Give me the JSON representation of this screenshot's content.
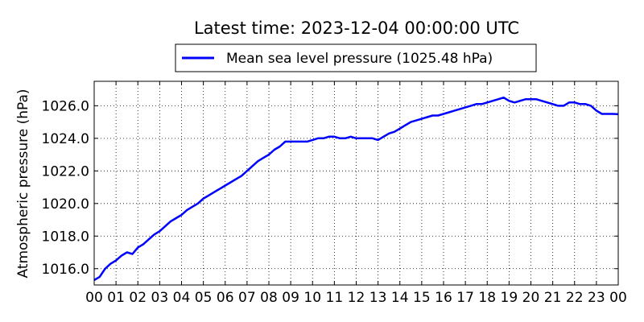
{
  "chart_data": {
    "type": "line",
    "title": "Latest time: 2023-12-04 00:00:00 UTC",
    "xlabel": "",
    "ylabel": "Atmospheric pressure (hPa)",
    "legend_placement": "top-center, above plot",
    "grid": true,
    "xlim": [
      0,
      24
    ],
    "ylim": [
      1015.0,
      1027.5
    ],
    "x_tick_labels": [
      "00",
      "01",
      "02",
      "03",
      "04",
      "05",
      "06",
      "07",
      "08",
      "09",
      "10",
      "11",
      "12",
      "13",
      "14",
      "15",
      "16",
      "17",
      "18",
      "19",
      "20",
      "21",
      "22",
      "23",
      "00"
    ],
    "y_ticks": [
      1016.0,
      1018.0,
      1020.0,
      1022.0,
      1024.0,
      1026.0
    ],
    "y_tick_labels": [
      "1016.0",
      "1018.0",
      "1020.0",
      "1022.0",
      "1024.0",
      "1026.0"
    ],
    "series": [
      {
        "name": "Mean sea level pressure (1025.48 hPa)",
        "color": "#0000ff",
        "x": [
          0,
          0.25,
          0.5,
          0.75,
          1,
          1.25,
          1.5,
          1.75,
          2,
          2.25,
          2.5,
          2.75,
          3,
          3.25,
          3.5,
          3.75,
          4,
          4.25,
          4.5,
          4.75,
          5,
          5.25,
          5.5,
          5.75,
          6,
          6.25,
          6.5,
          6.75,
          7,
          7.25,
          7.5,
          7.75,
          8,
          8.25,
          8.5,
          8.75,
          9,
          9.25,
          9.5,
          9.75,
          10,
          10.25,
          10.5,
          10.75,
          11,
          11.25,
          11.5,
          11.75,
          12,
          12.25,
          12.5,
          12.75,
          13,
          13.25,
          13.5,
          13.75,
          14,
          14.25,
          14.5,
          14.75,
          15,
          15.25,
          15.5,
          15.75,
          16,
          16.25,
          16.5,
          16.75,
          17,
          17.25,
          17.5,
          17.75,
          18,
          18.25,
          18.5,
          18.75,
          19,
          19.25,
          19.5,
          19.75,
          20,
          20.25,
          20.5,
          20.75,
          21,
          21.25,
          21.5,
          21.75,
          22,
          22.25,
          22.5,
          22.75,
          23,
          23.25,
          23.5,
          23.75,
          24
        ],
        "values": [
          1015.3,
          1015.5,
          1016.0,
          1016.3,
          1016.5,
          1016.8,
          1017.0,
          1016.9,
          1017.3,
          1017.5,
          1017.8,
          1018.1,
          1018.3,
          1018.6,
          1018.9,
          1019.1,
          1019.3,
          1019.6,
          1019.8,
          1020.0,
          1020.3,
          1020.5,
          1020.7,
          1020.9,
          1021.1,
          1021.3,
          1021.5,
          1021.7,
          1022.0,
          1022.3,
          1022.6,
          1022.8,
          1023.0,
          1023.3,
          1023.5,
          1023.8,
          1023.8,
          1023.8,
          1023.8,
          1023.8,
          1023.9,
          1024.0,
          1024.0,
          1024.1,
          1024.1,
          1024.0,
          1024.0,
          1024.1,
          1024.0,
          1024.0,
          1024.0,
          1024.0,
          1023.9,
          1024.1,
          1024.3,
          1024.4,
          1024.6,
          1024.8,
          1025.0,
          1025.1,
          1025.2,
          1025.3,
          1025.4,
          1025.4,
          1025.5,
          1025.6,
          1025.7,
          1025.8,
          1025.9,
          1026.0,
          1026.1,
          1026.1,
          1026.2,
          1026.3,
          1026.4,
          1026.5,
          1026.3,
          1026.2,
          1026.3,
          1026.4,
          1026.4,
          1026.4,
          1026.3,
          1026.2,
          1026.1,
          1026.0,
          1026.0,
          1026.2,
          1026.2,
          1026.1,
          1026.1,
          1026.0,
          1025.7,
          1025.5,
          1025.5,
          1025.5,
          1025.48
        ]
      }
    ]
  }
}
